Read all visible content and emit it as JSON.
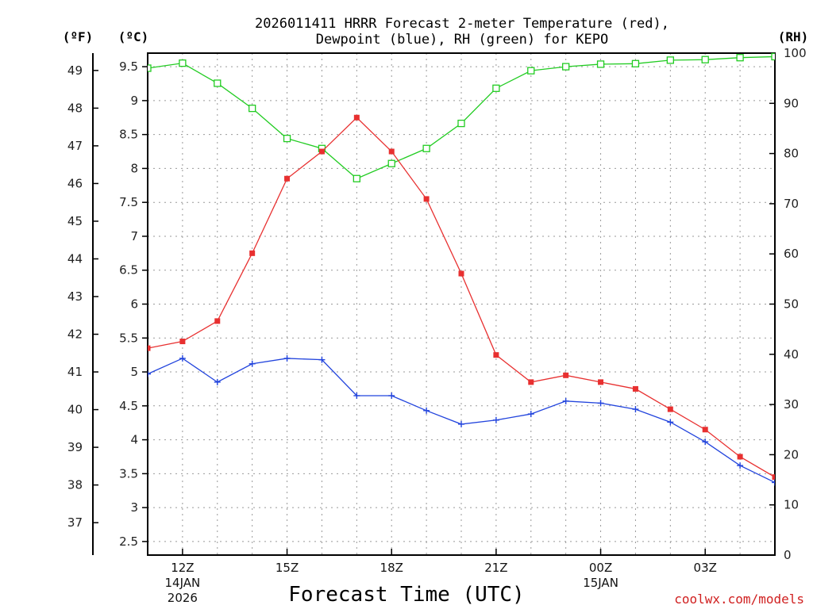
{
  "title_line1": "2026011411 HRRR Forecast 2-meter Temperature (red),",
  "title_line2": "Dewpoint (blue), RH (green) for KEPO",
  "units": {
    "fahrenheit": "(ºF)",
    "celsius": "(ºC)",
    "rh": "(RH)"
  },
  "xlabel": "Forecast Time (UTC)",
  "credit": "coolwx.com/models",
  "colors": {
    "temperature": "#e83030",
    "dewpoint": "#2244dd",
    "rh": "#22cc22",
    "grid": "#999999"
  },
  "chart_data": {
    "type": "line",
    "title": "2026011411 HRRR Forecast 2-meter Temperature (red), Dewpoint (blue), RH (green) for KEPO",
    "xlabel": "Forecast Time (UTC)",
    "x_hours": [
      11,
      12,
      13,
      14,
      15,
      16,
      17,
      18,
      19,
      20,
      21,
      22,
      23,
      24,
      25,
      26,
      27,
      28,
      29
    ],
    "x_range": [
      11,
      29
    ],
    "x_ticks": [
      {
        "hour": 12,
        "label": "12Z",
        "sub1": "14JAN",
        "sub2": "2026"
      },
      {
        "hour": 15,
        "label": "15Z",
        "sub1": "",
        "sub2": ""
      },
      {
        "hour": 18,
        "label": "18Z",
        "sub1": "",
        "sub2": ""
      },
      {
        "hour": 21,
        "label": "21Z",
        "sub1": "",
        "sub2": ""
      },
      {
        "hour": 24,
        "label": "00Z",
        "sub1": "15JAN",
        "sub2": ""
      },
      {
        "hour": 27,
        "label": "03Z",
        "sub1": "",
        "sub2": ""
      }
    ],
    "celsius_range": [
      2.3,
      9.7
    ],
    "celsius_ticks": [
      "2.5",
      "3",
      "3.5",
      "4",
      "4.5",
      "5",
      "5.5",
      "6",
      "6.5",
      "7",
      "7.5",
      "8",
      "8.5",
      "9",
      "9.5"
    ],
    "fahrenheit_ticks": [
      "37",
      "38",
      "39",
      "40",
      "41",
      "42",
      "43",
      "44",
      "45",
      "46",
      "47",
      "48",
      "49"
    ],
    "rh_range": [
      0,
      100
    ],
    "rh_ticks": [
      "0",
      "10",
      "20",
      "30",
      "40",
      "50",
      "60",
      "70",
      "80",
      "90",
      "100"
    ],
    "grid": true,
    "series": [
      {
        "name": "Temperature (°C)",
        "color": "red",
        "axis": "celsius",
        "marker": "filled-square",
        "values": [
          5.35,
          5.45,
          5.75,
          6.75,
          7.85,
          8.25,
          8.75,
          8.25,
          7.55,
          6.45,
          5.25,
          4.85,
          4.95,
          4.85,
          4.75,
          4.45,
          4.15,
          3.75,
          3.45
        ]
      },
      {
        "name": "Dewpoint (°C)",
        "color": "blue",
        "axis": "celsius",
        "marker": "plus",
        "values": [
          4.97,
          5.2,
          4.85,
          5.12,
          5.2,
          5.18,
          4.65,
          4.65,
          4.43,
          4.23,
          4.29,
          4.38,
          4.57,
          4.54,
          4.45,
          4.26,
          3.97,
          3.62,
          3.37
        ]
      },
      {
        "name": "RH (%)",
        "color": "green",
        "axis": "rh",
        "marker": "open-square",
        "values": [
          97,
          98,
          94,
          89,
          83,
          81,
          75,
          78,
          81,
          86,
          93,
          96.5,
          97.3,
          97.8,
          97.9,
          98.6,
          98.7,
          99.1,
          99.3
        ]
      }
    ]
  }
}
